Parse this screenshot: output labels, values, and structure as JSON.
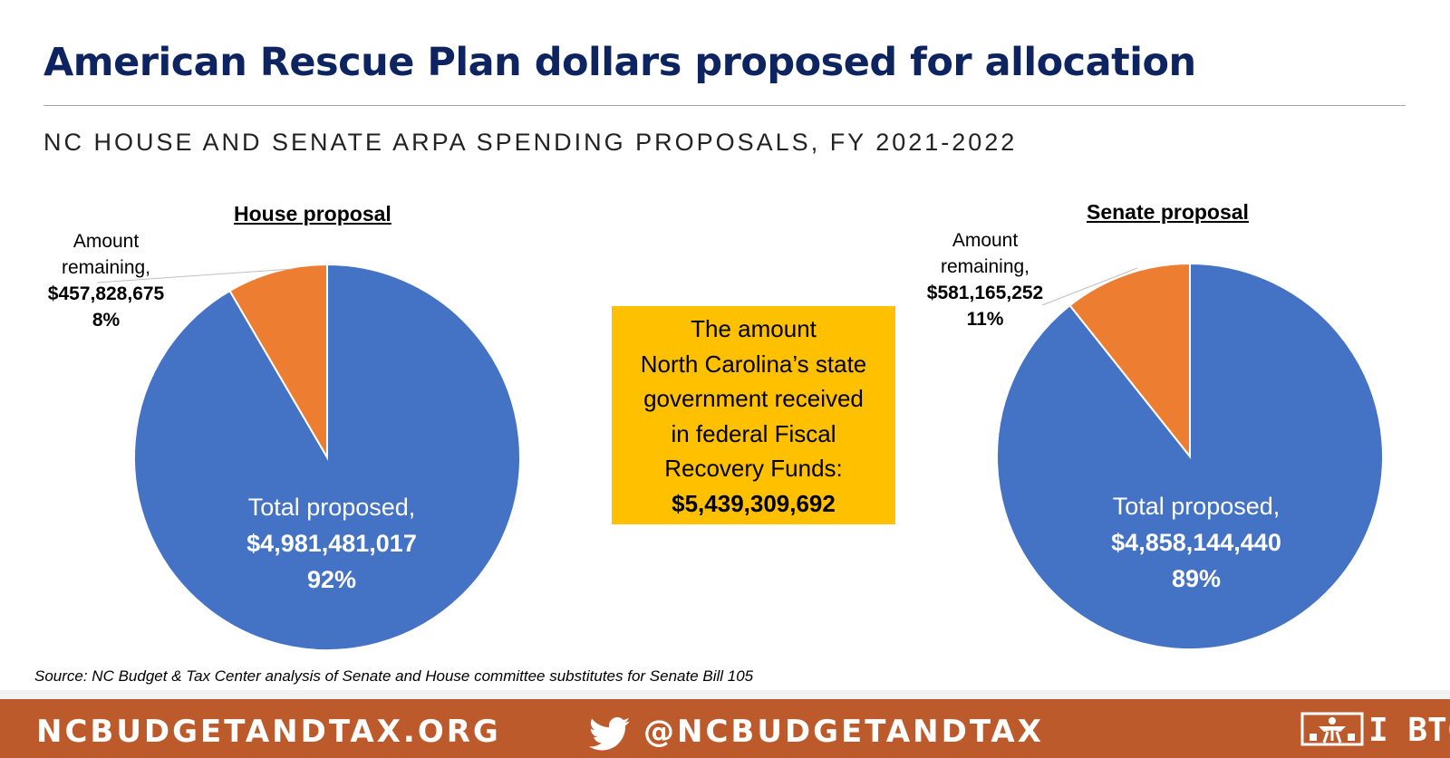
{
  "title": "American Rescue Plan dollars proposed for allocation",
  "subtitle": "NC HOUSE AND SENATE ARPA SPENDING PROPOSALS, FY 2021-2022",
  "colors": {
    "proposed": "#4472c4",
    "remaining": "#ed7d31",
    "title": "#0d2460",
    "highlight_box": "#ffc000",
    "footer": "#bd5a2c"
  },
  "chart_data": [
    {
      "type": "pie",
      "title": "House proposal",
      "slices": [
        {
          "label": "Total proposed,",
          "value": 4981481017,
          "value_text": "$4,981,481,017",
          "percent": 92,
          "percent_text": "92%",
          "color": "#4472c4"
        },
        {
          "label": "Amount remaining,",
          "value": 457828675,
          "value_text": "$457,828,675",
          "percent": 8,
          "percent_text": "8%",
          "color": "#ed7d31"
        }
      ]
    },
    {
      "type": "pie",
      "title": "Senate proposal",
      "slices": [
        {
          "label": "Total proposed,",
          "value": 4858144440,
          "value_text": "$4,858,144,440",
          "percent": 89,
          "percent_text": "89%",
          "color": "#4472c4"
        },
        {
          "label": "Amount remaining,",
          "value": 581165252,
          "value_text": "$581,165,252",
          "percent": 11,
          "percent_text": "11%",
          "color": "#ed7d31"
        }
      ]
    }
  ],
  "callout_labels": {
    "remaining_line1": "Amount",
    "remaining_line2": "remaining,"
  },
  "highlight_box": {
    "lines": [
      "The amount",
      "North Carolina’s state",
      "government received",
      "in federal Fiscal",
      "Recovery Funds:"
    ],
    "value": "$5,439,309,692"
  },
  "source": "Source: NC Budget & Tax Center analysis of Senate and House committee substitutes for Senate Bill 105",
  "footer": {
    "website": "NCBUDGETANDTAX.ORG",
    "twitter_handle": "@NCBUDGETANDTAX",
    "twitter_icon": "twitter-bird-icon",
    "logo_text": "I BTC"
  }
}
